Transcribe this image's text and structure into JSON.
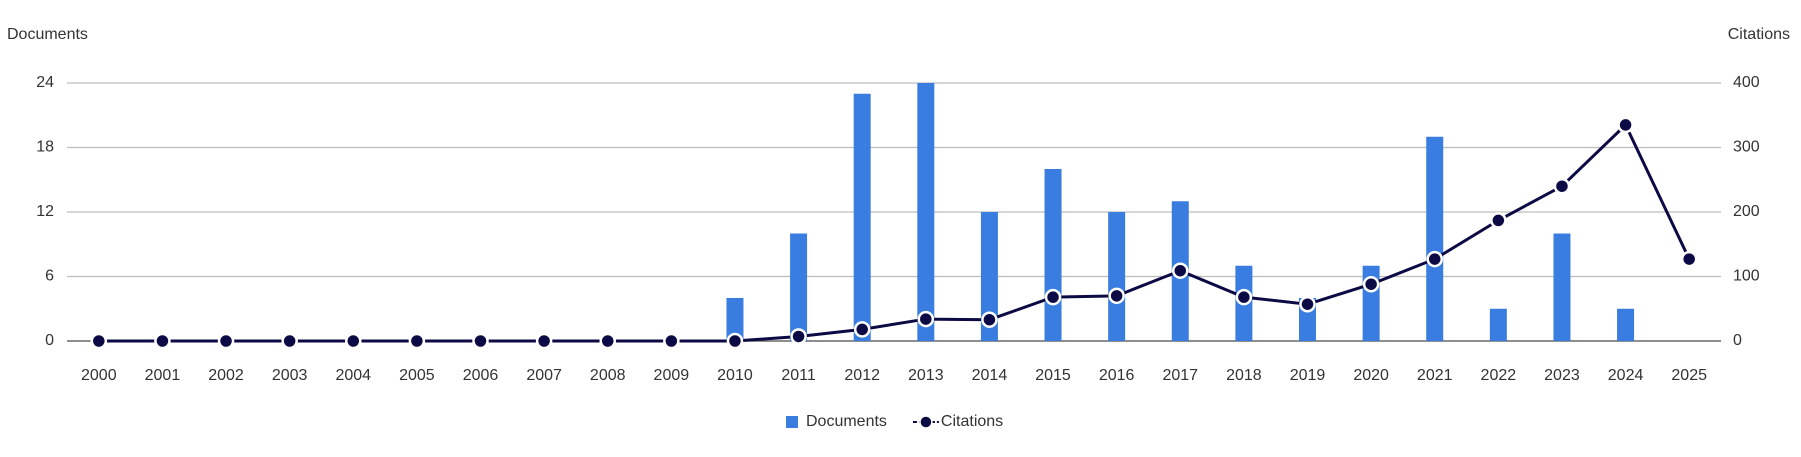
{
  "chart_data": {
    "type": "combo",
    "y_label": "Documents",
    "y2_label": "Citations",
    "categories": [
      "2000",
      "2001",
      "2002",
      "2003",
      "2004",
      "2005",
      "2006",
      "2007",
      "2008",
      "2009",
      "2010",
      "2011",
      "2012",
      "2013",
      "2014",
      "2015",
      "2016",
      "2017",
      "2018",
      "2019",
      "2020",
      "2021",
      "2022",
      "2023",
      "2024",
      "2025"
    ],
    "series": [
      {
        "name": "Documents",
        "type": "bar",
        "color": "#3a7de0",
        "values": [
          0,
          0,
          0,
          0,
          0,
          0,
          0,
          0,
          0,
          0,
          4,
          10,
          23,
          24,
          12,
          16,
          12,
          13,
          7,
          4,
          7,
          19,
          3,
          10,
          3,
          0
        ]
      },
      {
        "name": "Citations",
        "type": "line",
        "axis": "y2",
        "color": "#0b0a44",
        "values": [
          0,
          0,
          0,
          0,
          0,
          0,
          0,
          0,
          0,
          0,
          0,
          7,
          18,
          34,
          33,
          68,
          70,
          109,
          68,
          57,
          88,
          127,
          187,
          240,
          335,
          127
        ]
      }
    ],
    "ylim": [
      0,
      24
    ],
    "yticks": [
      0,
      6,
      12,
      18,
      24
    ],
    "y2lim": [
      0,
      400
    ],
    "y2ticks": [
      0,
      100,
      200,
      300,
      400
    ],
    "grid": true,
    "legend": "bottom"
  }
}
